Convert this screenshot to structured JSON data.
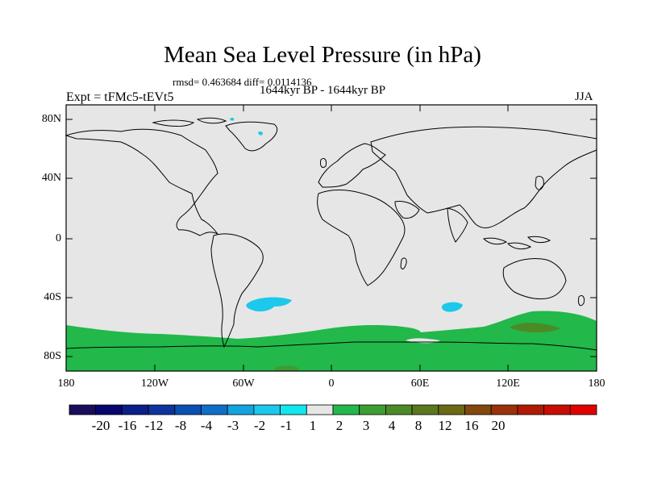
{
  "title": "Mean Sea Level Pressure (in hPa)",
  "stats": "rmsd= 0.463684 diff= 0.0114136",
  "period": "1644kyr BP - 1644kyr BP",
  "experiment": "Expt = tFMc5-tEVt5",
  "season": "JJA",
  "map": {
    "lat_ticks": [
      "80N",
      "40N",
      "0",
      "40S",
      "80S"
    ],
    "lon_ticks": [
      "180",
      "120W",
      "60W",
      "0",
      "60E",
      "120E",
      "180"
    ],
    "land_color": "#e6e6e6"
  },
  "colorbar": {
    "colors": [
      "#1a0d5e",
      "#06066e",
      "#0b1f8a",
      "#0d339e",
      "#0a4fb4",
      "#0f6fc8",
      "#13a4e0",
      "#1cc8ec",
      "#12e6ee",
      "#e6e6e6",
      "#22b84a",
      "#3c9e32",
      "#4c8a26",
      "#5c781e",
      "#6b6914",
      "#82480c",
      "#9b3108",
      "#b01a04",
      "#c80e02",
      "#e00000"
    ],
    "labels": [
      "-20",
      "-16",
      "-12",
      "-8",
      "-4",
      "-3",
      "-2",
      "-1",
      "1",
      "2",
      "3",
      "4",
      "8",
      "12",
      "16",
      "20"
    ]
  }
}
